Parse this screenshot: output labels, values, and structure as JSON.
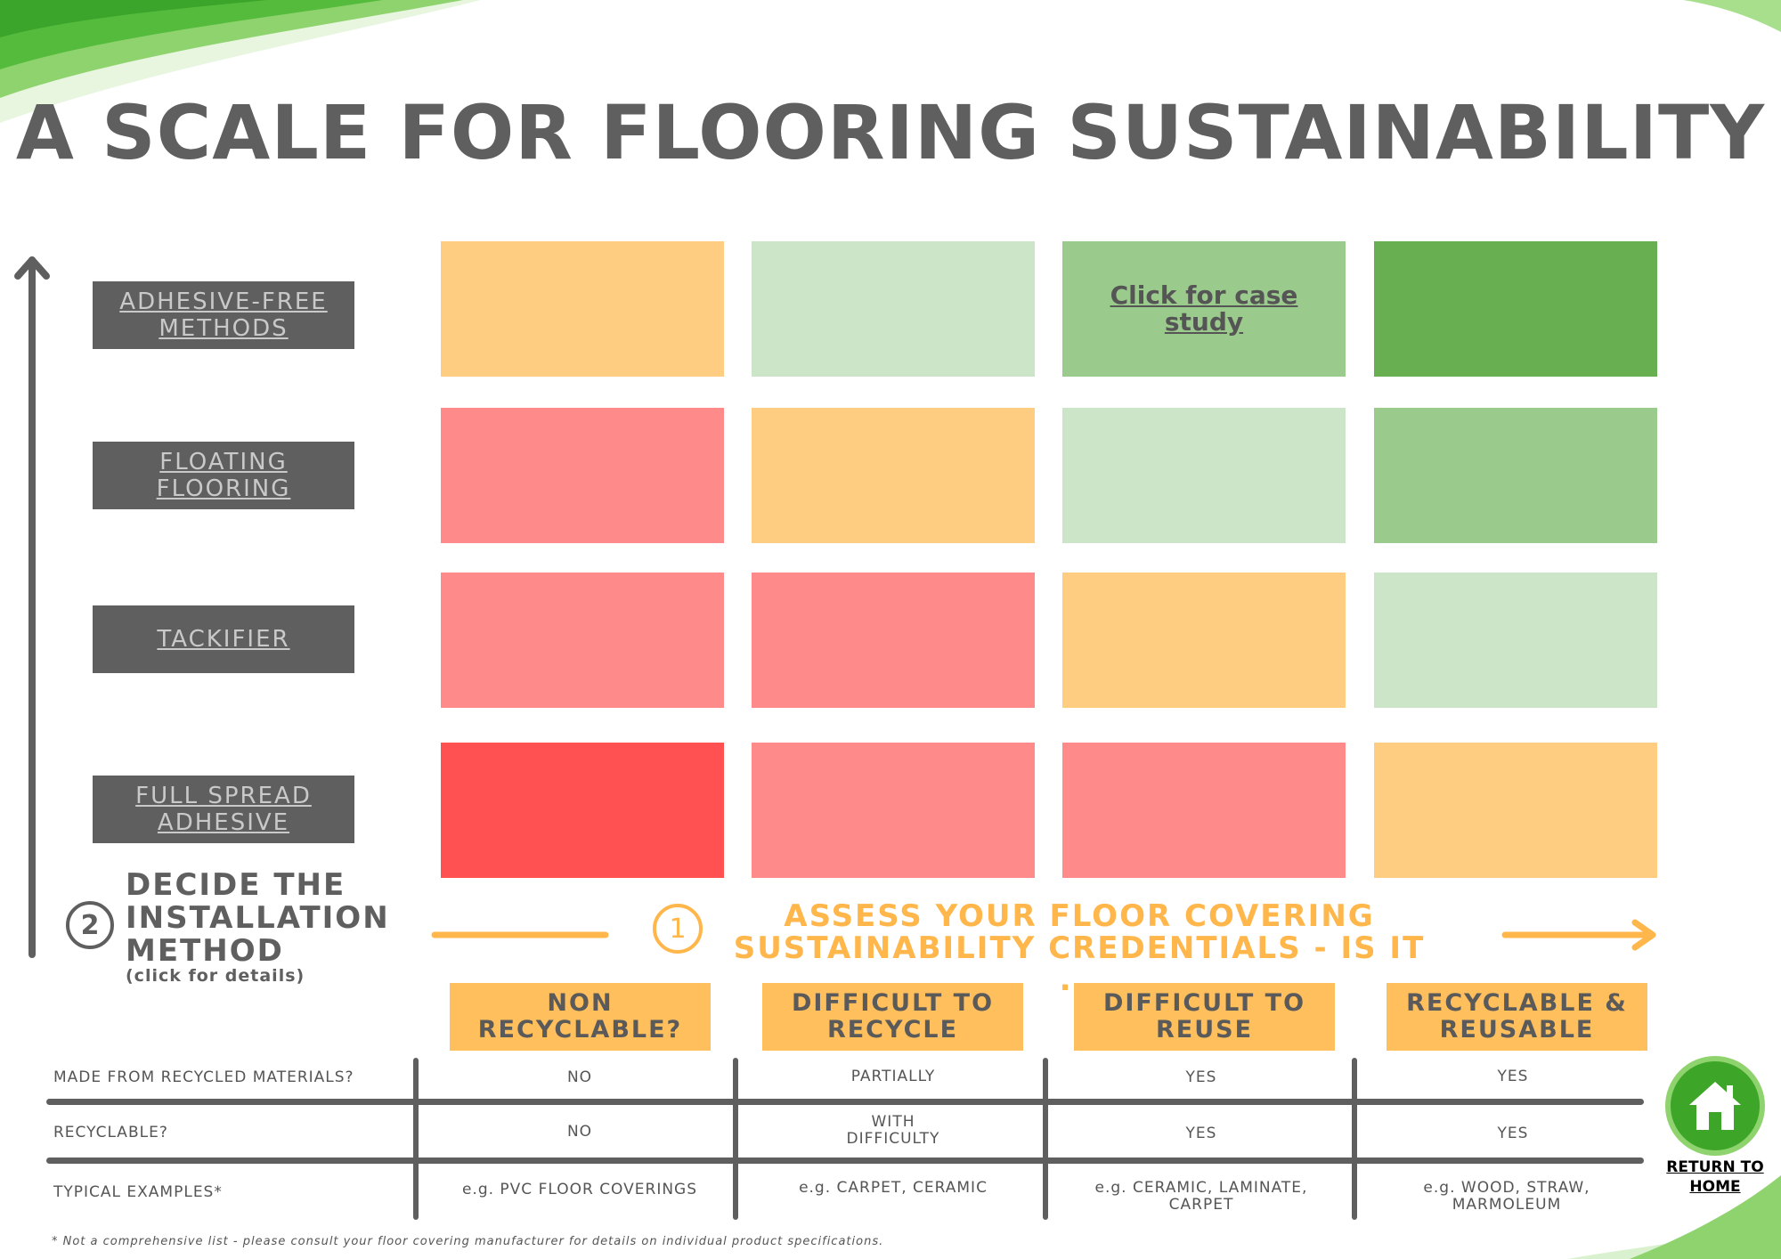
{
  "title": "A SCALE FOR FLOORING SUSTAINABILITY",
  "methods": [
    {
      "label": "ADHESIVE-FREE METHODS"
    },
    {
      "label": "FLOATING FLOORING"
    },
    {
      "label": "TACKIFIER"
    },
    {
      "label": "FULL SPREAD ADHESIVE"
    }
  ],
  "grid_colors": {
    "dark_red": "#ff5151",
    "light_red": "#ff8a8a",
    "orange": "#ffcd82",
    "pale_green": "#cce4c8",
    "mid_green": "#9bcb8c",
    "dark_green": "#68af52"
  },
  "case_study_link": "Click for case study",
  "step2": {
    "number": "2",
    "heading": "DECIDE THE INSTALLATION METHOD",
    "sub": "(click for details)"
  },
  "step1": {
    "number": "1",
    "heading": "ASSESS YOUR FLOOR COVERING SUSTAINABILITY CREDENTIALS - IS IT ..."
  },
  "categories": [
    "NON RECYCLABLE?",
    "DIFFICULT TO RECYCLE",
    "DIFFICULT TO REUSE",
    "RECYCLABLE & REUSABLE"
  ],
  "table": {
    "rows": [
      {
        "label": "MADE FROM RECYCLED MATERIALS?",
        "values": [
          "NO",
          "PARTIALLY",
          "YES",
          "YES"
        ]
      },
      {
        "label": "RECYCLABLE?",
        "values": [
          "NO",
          "WITH DIFFICULTY",
          "YES",
          "YES"
        ]
      },
      {
        "label": "TYPICAL EXAMPLES*",
        "values": [
          "e.g. PVC FLOOR COVERINGS",
          "e.g. CARPET, CERAMIC",
          "e.g. CERAMIC, LAMINATE, CARPET",
          "e.g. WOOD, STRAW, MARMOLEUM"
        ]
      }
    ]
  },
  "footnote": "* Not a comprehensive list - please consult your floor covering manufacturer for details on individual product specifications.",
  "home": {
    "label": "RETURN TO HOME",
    "icon": "home-icon"
  }
}
